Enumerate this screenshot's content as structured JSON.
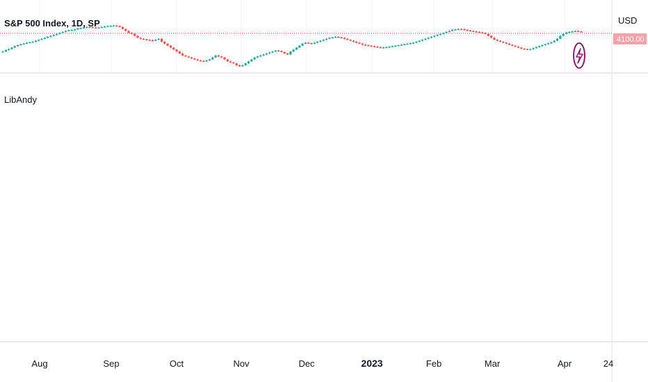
{
  "chart_data": {
    "type": "candlestick",
    "title": "S&P 500 Index, 1D, SP",
    "currency": "USD",
    "current_price_label": "4100.00",
    "indicator_pane_label": "LibAndy",
    "x_axis_labels": [
      {
        "label": "Aug",
        "bold": false
      },
      {
        "label": "Sep",
        "bold": false
      },
      {
        "label": "Oct",
        "bold": false
      },
      {
        "label": "Nov",
        "bold": false
      },
      {
        "label": "Dec",
        "bold": false
      },
      {
        "label": "2023",
        "bold": true
      },
      {
        "label": "Feb",
        "bold": false
      },
      {
        "label": "Mar",
        "bold": false
      },
      {
        "label": "Apr",
        "bold": false
      },
      {
        "label": "24",
        "bold": false
      }
    ],
    "close_series": [
      3900,
      3915,
      3925,
      3940,
      3955,
      3965,
      3975,
      3982,
      3990,
      3995,
      4000,
      4010,
      4020,
      4030,
      4040,
      4050,
      4060,
      4070,
      4080,
      4090,
      4100,
      4110,
      4118,
      4120,
      4125,
      4135,
      4140,
      4145,
      4150,
      4148,
      4145,
      4140,
      4145,
      4150,
      4155,
      4160,
      4162,
      4165,
      4160,
      4150,
      4130,
      4110,
      4090,
      4080,
      4060,
      4040,
      4030,
      4025,
      4020,
      4015,
      4010,
      4020,
      4030,
      4000,
      3980,
      3960,
      3940,
      3920,
      3900,
      3880,
      3860,
      3850,
      3840,
      3830,
      3820,
      3810,
      3805,
      3800,
      3810,
      3820,
      3840,
      3860,
      3850,
      3840,
      3820,
      3800,
      3790,
      3780,
      3760,
      3750,
      3760,
      3780,
      3800,
      3820,
      3840,
      3850,
      3860,
      3870,
      3880,
      3890,
      3900,
      3910,
      3905,
      3895,
      3880,
      3870,
      3900,
      3920,
      3940,
      3960,
      3980,
      3990,
      3985,
      3980,
      3990,
      4000,
      4010,
      4020,
      4030,
      4040,
      4045,
      4050,
      4045,
      4040,
      4030,
      4020,
      4010,
      4000,
      3990,
      3980,
      3970,
      3965,
      3960,
      3955,
      3950,
      3945,
      3940,
      3942,
      3945,
      3950,
      3955,
      3960,
      3965,
      3970,
      3975,
      3980,
      3985,
      3990,
      4000,
      4010,
      4020,
      4030,
      4040,
      4050,
      4060,
      4070,
      4080,
      4090,
      4100,
      4110,
      4120,
      4125,
      4130,
      4128,
      4120,
      4115,
      4110,
      4105,
      4100,
      4095,
      4090,
      4080,
      4060,
      4040,
      4020,
      4010,
      4000,
      3990,
      3980,
      3970,
      3960,
      3950,
      3940,
      3930,
      3925,
      3920,
      3925,
      3935,
      3945,
      3955,
      3965,
      3975,
      3985,
      3995,
      4010,
      4030,
      4060,
      4080,
      4095,
      4100,
      4105,
      4110,
      4105,
      4100
    ]
  }
}
